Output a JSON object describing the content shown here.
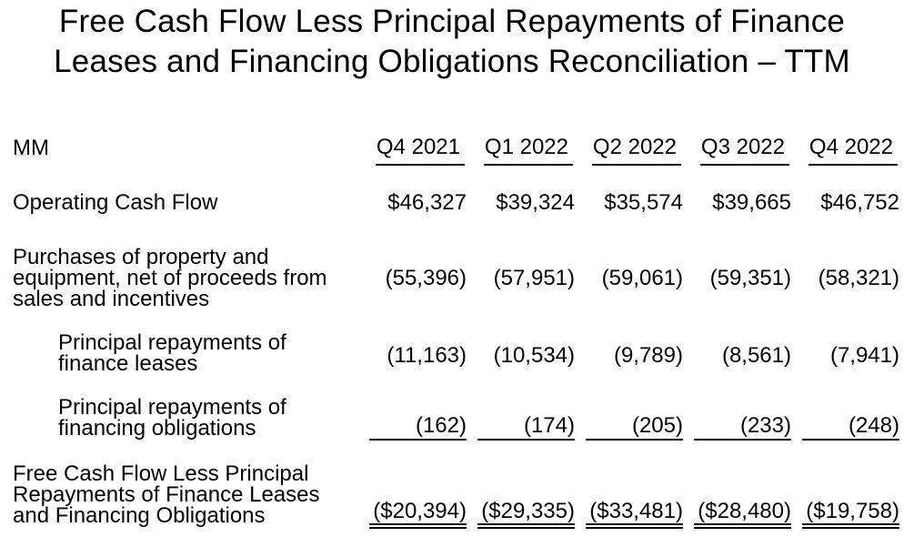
{
  "page": {
    "background_color": "#ffffff",
    "text_color": "#000000"
  },
  "title_display": "Free Cash Flow Less Principal Repayments of Finance\nLeases and Financing Obligations Reconciliation – TTM",
  "chart_data": {
    "type": "table",
    "title": "Free Cash Flow Less Principal Repayments of Finance Leases and Financing Obligations Reconciliation – TTM",
    "unit": "MM",
    "columns": [
      "Q4 2021",
      "Q1 2022",
      "Q2 2022",
      "Q3 2022",
      "Q4 2022"
    ],
    "rows": [
      {
        "label": "Operating Cash Flow",
        "label_display": "Operating Cash Flow",
        "indent": false,
        "underline": "none",
        "values": [
          "$46,327",
          "$39,324",
          "$35,574",
          "$39,665",
          "$46,752"
        ],
        "values_numeric": [
          46327,
          39324,
          35574,
          39665,
          46752
        ]
      },
      {
        "label": "Purchases of property and equipment, net of proceeds from sales and incentives",
        "label_display": "Purchases of property and\nequipment, net of proceeds from\nsales and incentives",
        "indent": false,
        "underline": "none",
        "values": [
          "(55,396)",
          "(57,951)",
          "(59,061)",
          "(59,351)",
          "(58,321)"
        ],
        "values_numeric": [
          -55396,
          -57951,
          -59061,
          -59351,
          -58321
        ]
      },
      {
        "label": "Principal repayments of finance leases",
        "label_display": "Principal repayments of\nfinance leases",
        "indent": true,
        "underline": "none",
        "values": [
          "(11,163)",
          "(10,534)",
          "(9,789)",
          "(8,561)",
          "(7,941)"
        ],
        "values_numeric": [
          -11163,
          -10534,
          -9789,
          -8561,
          -7941
        ]
      },
      {
        "label": "Principal repayments of financing obligations",
        "label_display": "Principal repayments of\nfinancing obligations",
        "indent": true,
        "underline": "single",
        "values": [
          "(162)",
          "(174)",
          "(205)",
          "(233)",
          "(248)"
        ],
        "values_numeric": [
          -162,
          -174,
          -205,
          -233,
          -248
        ]
      },
      {
        "label": "Free Cash Flow Less Principal Repayments of Finance Leases and Financing Obligations",
        "label_display": "Free Cash Flow Less Principal\nRepayments of Finance Leases\nand Financing Obligations",
        "indent": false,
        "underline": "double",
        "values": [
          "($20,394)",
          "($29,335)",
          "($33,481)",
          "($28,480)",
          "($19,758)"
        ],
        "values_numeric": [
          -20394,
          -29335,
          -33481,
          -28480,
          -19758
        ]
      }
    ]
  }
}
